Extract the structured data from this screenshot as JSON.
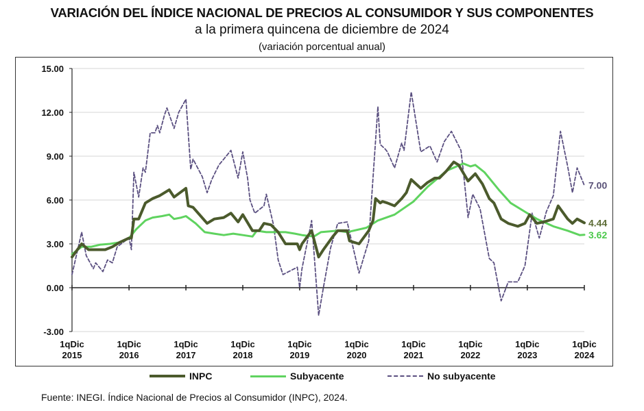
{
  "chart_data": {
    "type": "line",
    "title": "VARIACIÓN DEL ÍNDICE NACIONAL DE PRECIOS AL CONSUMIDOR Y SUS COMPONENTES",
    "subtitle": "a la primera quincena de diciembre de 2024",
    "ylabel": "(variación porcentual anual)",
    "ylim": [
      -3,
      15
    ],
    "yticks": [
      "15.00",
      "12.00",
      "9.00",
      "6.00",
      "3.00",
      "0.00",
      "-3.00"
    ],
    "ytick_values": [
      15,
      12,
      9,
      6,
      3,
      0,
      -3
    ],
    "xlim": [
      "2015-12-01",
      "2024-12-01"
    ],
    "xticks": [
      {
        "date": "2015-12-01",
        "line1": "1qDic",
        "line2": "2015"
      },
      {
        "date": "2016-12-01",
        "line1": "1qDic",
        "line2": "2016"
      },
      {
        "date": "2017-12-01",
        "line1": "1qDic",
        "line2": "2017"
      },
      {
        "date": "2018-12-01",
        "line1": "1qDic",
        "line2": "2018"
      },
      {
        "date": "2019-12-01",
        "line1": "1qDic",
        "line2": "2019"
      },
      {
        "date": "2020-12-01",
        "line1": "1qDic",
        "line2": "2020"
      },
      {
        "date": "2021-12-01",
        "line1": "1qDic",
        "line2": "2021"
      },
      {
        "date": "2022-12-01",
        "line1": "1qDic",
        "line2": "2022"
      },
      {
        "date": "2023-12-01",
        "line1": "1qDic",
        "line2": "2023"
      },
      {
        "date": "2024-12-01",
        "line1": "1qDic",
        "line2": "2024"
      }
    ],
    "grid": true,
    "legend_position": "bottom",
    "series": [
      {
        "name": "INPC",
        "color": "#4b5a2c",
        "style": "solid-thick",
        "end_label": "4.44",
        "end_label_color": "#5b6b34",
        "points": [
          [
            "2015-12-01",
            2.1
          ],
          [
            "2016-02-01",
            3.0
          ],
          [
            "2016-03-16",
            2.6
          ],
          [
            "2016-05-01",
            2.6
          ],
          [
            "2016-07-01",
            2.6
          ],
          [
            "2016-08-16",
            2.8
          ],
          [
            "2016-10-01",
            3.1
          ],
          [
            "2016-12-01",
            3.4
          ],
          [
            "2016-12-16",
            3.4
          ],
          [
            "2017-01-01",
            4.7
          ],
          [
            "2017-02-01",
            4.7
          ],
          [
            "2017-03-16",
            5.8
          ],
          [
            "2017-05-01",
            6.1
          ],
          [
            "2017-06-16",
            6.3
          ],
          [
            "2017-08-16",
            6.7
          ],
          [
            "2017-09-16",
            6.2
          ],
          [
            "2017-12-01",
            6.8
          ],
          [
            "2017-12-16",
            5.6
          ],
          [
            "2018-01-16",
            5.5
          ],
          [
            "2018-04-16",
            4.4
          ],
          [
            "2018-06-01",
            4.7
          ],
          [
            "2018-08-01",
            4.8
          ],
          [
            "2018-09-16",
            5.1
          ],
          [
            "2018-11-01",
            4.5
          ],
          [
            "2018-12-01",
            5.0
          ],
          [
            "2019-02-01",
            3.9
          ],
          [
            "2019-03-16",
            3.9
          ],
          [
            "2019-04-16",
            4.4
          ],
          [
            "2019-06-01",
            4.3
          ],
          [
            "2019-07-16",
            3.8
          ],
          [
            "2019-09-01",
            3.0
          ],
          [
            "2019-11-16",
            3.0
          ],
          [
            "2019-12-01",
            2.6
          ],
          [
            "2019-12-16",
            3.0
          ],
          [
            "2020-02-16",
            3.9
          ],
          [
            "2020-04-01",
            2.1
          ],
          [
            "2020-05-01",
            2.6
          ],
          [
            "2020-07-01",
            3.5
          ],
          [
            "2020-08-01",
            3.9
          ],
          [
            "2020-10-01",
            3.9
          ],
          [
            "2020-10-16",
            3.2
          ],
          [
            "2020-12-16",
            3.0
          ],
          [
            "2021-02-16",
            3.9
          ],
          [
            "2021-03-16",
            4.6
          ],
          [
            "2021-04-01",
            6.1
          ],
          [
            "2021-05-01",
            5.8
          ],
          [
            "2021-05-16",
            5.9
          ],
          [
            "2021-06-16",
            5.8
          ],
          [
            "2021-08-01",
            5.6
          ],
          [
            "2021-09-16",
            6.1
          ],
          [
            "2021-10-16",
            6.5
          ],
          [
            "2021-11-16",
            7.4
          ],
          [
            "2022-01-16",
            6.8
          ],
          [
            "2022-03-01",
            7.2
          ],
          [
            "2022-04-16",
            7.5
          ],
          [
            "2022-05-16",
            7.5
          ],
          [
            "2022-07-01",
            8.0
          ],
          [
            "2022-08-16",
            8.6
          ],
          [
            "2022-09-16",
            8.4
          ],
          [
            "2022-11-16",
            7.3
          ],
          [
            "2023-01-01",
            7.8
          ],
          [
            "2023-02-16",
            7.1
          ],
          [
            "2023-04-01",
            6.1
          ],
          [
            "2023-05-01",
            5.8
          ],
          [
            "2023-06-16",
            4.7
          ],
          [
            "2023-08-01",
            4.4
          ],
          [
            "2023-10-01",
            4.2
          ],
          [
            "2023-11-16",
            4.4
          ],
          [
            "2023-12-16",
            5.0
          ],
          [
            "2024-02-01",
            4.4
          ],
          [
            "2024-03-16",
            4.5
          ],
          [
            "2024-05-16",
            4.7
          ],
          [
            "2024-06-16",
            5.6
          ],
          [
            "2024-08-16",
            4.7
          ],
          [
            "2024-09-16",
            4.4
          ],
          [
            "2024-10-16",
            4.7
          ],
          [
            "2024-12-01",
            4.44
          ]
        ]
      },
      {
        "name": "Subyacente",
        "color": "#5fd35f",
        "style": "solid",
        "end_label": "3.62",
        "end_label_color": "#4cc94c",
        "points": [
          [
            "2015-12-01",
            2.3
          ],
          [
            "2016-02-01",
            2.8
          ],
          [
            "2016-04-01",
            2.8
          ],
          [
            "2016-06-01",
            2.95
          ],
          [
            "2016-08-01",
            3.0
          ],
          [
            "2016-10-01",
            3.1
          ],
          [
            "2016-12-01",
            3.4
          ],
          [
            "2017-01-16",
            4.0
          ],
          [
            "2017-03-16",
            4.6
          ],
          [
            "2017-05-01",
            4.8
          ],
          [
            "2017-07-01",
            4.9
          ],
          [
            "2017-08-16",
            5.0
          ],
          [
            "2017-09-16",
            4.7
          ],
          [
            "2017-11-01",
            4.8
          ],
          [
            "2017-12-01",
            4.9
          ],
          [
            "2018-02-01",
            4.4
          ],
          [
            "2018-04-01",
            3.8
          ],
          [
            "2018-06-01",
            3.7
          ],
          [
            "2018-08-01",
            3.6
          ],
          [
            "2018-10-01",
            3.7
          ],
          [
            "2018-12-01",
            3.6
          ],
          [
            "2019-02-01",
            3.5
          ],
          [
            "2019-03-01",
            3.9
          ],
          [
            "2019-05-01",
            3.8
          ],
          [
            "2019-07-01",
            3.8
          ],
          [
            "2019-09-01",
            3.8
          ],
          [
            "2019-11-01",
            3.7
          ],
          [
            "2019-12-16",
            3.6
          ],
          [
            "2020-03-01",
            3.5
          ],
          [
            "2020-04-16",
            3.8
          ],
          [
            "2020-08-01",
            3.9
          ],
          [
            "2020-10-01",
            3.8
          ],
          [
            "2021-02-01",
            4.1
          ],
          [
            "2021-04-16",
            4.6
          ],
          [
            "2021-08-01",
            5.0
          ],
          [
            "2021-12-01",
            5.9
          ],
          [
            "2022-03-01",
            6.9
          ],
          [
            "2022-07-01",
            8.0
          ],
          [
            "2022-10-16",
            8.5
          ],
          [
            "2022-12-01",
            8.3
          ],
          [
            "2023-01-01",
            8.4
          ],
          [
            "2023-03-01",
            7.9
          ],
          [
            "2023-06-01",
            6.7
          ],
          [
            "2023-08-16",
            5.8
          ],
          [
            "2023-11-16",
            5.2
          ],
          [
            "2024-02-01",
            4.7
          ],
          [
            "2024-05-16",
            4.2
          ],
          [
            "2024-08-16",
            3.9
          ],
          [
            "2024-11-01",
            3.6
          ],
          [
            "2024-12-01",
            3.62
          ]
        ]
      },
      {
        "name": "No subyacente",
        "color": "#5a4f80",
        "style": "dashed",
        "end_label": "7.00",
        "end_label_color": "#5a5278",
        "points": [
          [
            "2015-12-01",
            0.9
          ],
          [
            "2016-02-01",
            3.8
          ],
          [
            "2016-03-01",
            2.2
          ],
          [
            "2016-04-16",
            1.3
          ],
          [
            "2016-05-01",
            1.7
          ],
          [
            "2016-06-16",
            1.1
          ],
          [
            "2016-07-16",
            1.9
          ],
          [
            "2016-08-16",
            1.7
          ],
          [
            "2016-09-16",
            2.8
          ],
          [
            "2016-12-01",
            3.4
          ],
          [
            "2016-12-16",
            2.6
          ],
          [
            "2017-01-01",
            7.9
          ],
          [
            "2017-02-01",
            6.2
          ],
          [
            "2017-03-01",
            8.2
          ],
          [
            "2017-03-16",
            7.9
          ],
          [
            "2017-04-16",
            10.6
          ],
          [
            "2017-05-16",
            10.6
          ],
          [
            "2017-06-01",
            11.1
          ],
          [
            "2017-06-16",
            10.6
          ],
          [
            "2017-07-16",
            11.8
          ],
          [
            "2017-08-01",
            12.3
          ],
          [
            "2017-09-16",
            10.9
          ],
          [
            "2017-10-16",
            12.0
          ],
          [
            "2017-12-01",
            12.9
          ],
          [
            "2018-01-01",
            8.1
          ],
          [
            "2018-01-16",
            8.8
          ],
          [
            "2018-03-16",
            7.6
          ],
          [
            "2018-04-16",
            6.5
          ],
          [
            "2018-05-16",
            7.4
          ],
          [
            "2018-07-01",
            8.4
          ],
          [
            "2018-08-01",
            8.8
          ],
          [
            "2018-09-16",
            9.4
          ],
          [
            "2018-11-01",
            7.5
          ],
          [
            "2018-12-01",
            9.3
          ],
          [
            "2019-01-01",
            7.5
          ],
          [
            "2019-01-16",
            6.0
          ],
          [
            "2019-02-16",
            5.1
          ],
          [
            "2019-04-16",
            5.6
          ],
          [
            "2019-05-01",
            6.4
          ],
          [
            "2019-06-16",
            4.3
          ],
          [
            "2019-07-16",
            1.9
          ],
          [
            "2019-08-16",
            0.9
          ],
          [
            "2019-11-16",
            1.4
          ],
          [
            "2019-12-01",
            0.0
          ],
          [
            "2019-12-16",
            1.3
          ],
          [
            "2020-02-16",
            4.6
          ],
          [
            "2020-04-01",
            -1.9
          ],
          [
            "2020-05-01",
            0.0
          ],
          [
            "2020-06-16",
            2.7
          ],
          [
            "2020-08-01",
            4.4
          ],
          [
            "2020-10-01",
            4.5
          ],
          [
            "2020-12-16",
            1.0
          ],
          [
            "2021-02-16",
            3.2
          ],
          [
            "2021-04-16",
            12.4
          ],
          [
            "2021-05-01",
            9.8
          ],
          [
            "2021-06-01",
            9.5
          ],
          [
            "2021-06-16",
            9.3
          ],
          [
            "2021-08-01",
            8.2
          ],
          [
            "2021-09-16",
            9.9
          ],
          [
            "2021-10-01",
            9.4
          ],
          [
            "2021-11-16",
            13.4
          ],
          [
            "2022-01-16",
            9.3
          ],
          [
            "2022-03-16",
            9.7
          ],
          [
            "2022-05-01",
            8.6
          ],
          [
            "2022-06-16",
            10.0
          ],
          [
            "2022-08-01",
            10.7
          ],
          [
            "2022-10-01",
            9.4
          ],
          [
            "2022-10-16",
            8.0
          ],
          [
            "2022-11-16",
            4.8
          ],
          [
            "2022-12-16",
            6.4
          ],
          [
            "2023-02-01",
            5.4
          ],
          [
            "2023-04-01",
            2.0
          ],
          [
            "2023-05-01",
            1.7
          ],
          [
            "2023-06-16",
            -0.9
          ],
          [
            "2023-08-01",
            0.4
          ],
          [
            "2023-10-01",
            0.4
          ],
          [
            "2023-11-16",
            1.5
          ],
          [
            "2024-01-01",
            5.1
          ],
          [
            "2024-02-16",
            3.4
          ],
          [
            "2024-04-01",
            5.2
          ],
          [
            "2024-05-16",
            6.3
          ],
          [
            "2024-07-01",
            10.7
          ],
          [
            "2024-08-16",
            8.3
          ],
          [
            "2024-09-16",
            6.5
          ],
          [
            "2024-10-16",
            8.2
          ],
          [
            "2024-12-01",
            7.0
          ]
        ]
      }
    ]
  },
  "source": "Fuente: INEGI. Índice Nacional de Precios al Consumidor (INPC), 2024."
}
